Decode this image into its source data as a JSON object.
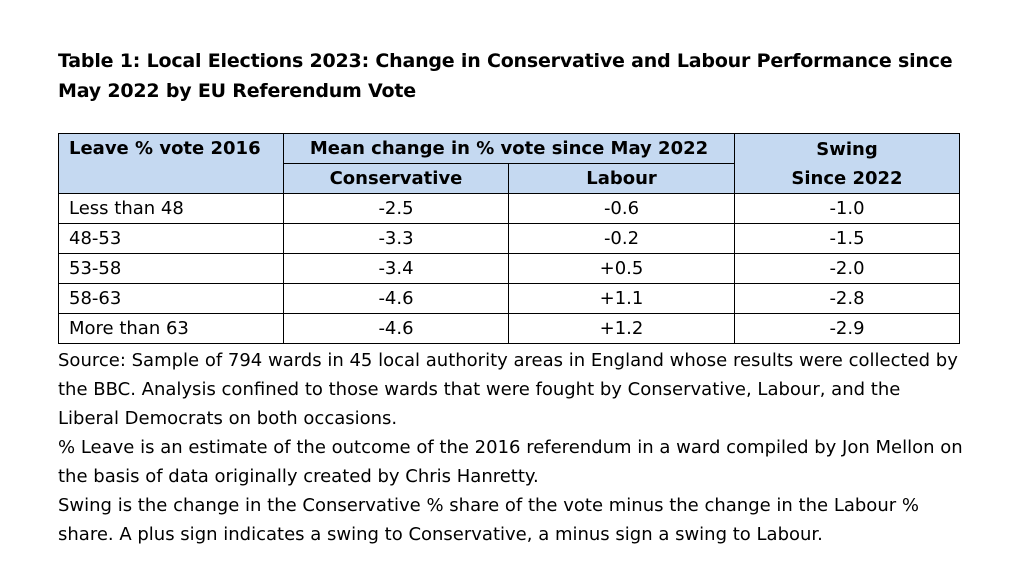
{
  "title": "Table 1: Local Elections 2023: Change in Conservative and Labour Performance since May 2022 by EU Referendum Vote",
  "table": {
    "headers": {
      "leave": "Leave % vote 2016",
      "mean_change": "Mean change in % vote since May 2022",
      "swing_line1": "Swing",
      "swing_line2": "Since 2022",
      "conservative": "Conservative",
      "labour": "Labour"
    },
    "rows": [
      {
        "leave": "Less than 48",
        "conservative": "-2.5",
        "labour": "-0.6",
        "swing": "-1.0"
      },
      {
        "leave": "48-53",
        "conservative": "-3.3",
        "labour": "-0.2",
        "swing": "-1.5"
      },
      {
        "leave": "53-58",
        "conservative": "-3.4",
        "labour": "+0.5",
        "swing": "-2.0"
      },
      {
        "leave": "58-63",
        "conservative": "-4.6",
        "labour": "+1.1",
        "swing": "-2.8"
      },
      {
        "leave": "More than 63",
        "conservative": "-4.6",
        "labour": "+1.2",
        "swing": "-2.9"
      }
    ]
  },
  "notes": [
    "Source: Sample of 794 wards in 45 local authority areas in England whose results were collected by the BBC. Analysis confined to those wards that were fought by Conservative, Labour, and the Liberal Democrats on both occasions.",
    "% Leave is an estimate of the outcome of the 2016 referendum in a ward compiled by Jon Mellon on the basis of data originally created by Chris Hanretty.",
    "Swing is the change in the Conservative % share of the vote minus the change in the Labour % share. A plus sign indicates a swing to Conservative, a minus sign a swing to Labour."
  ],
  "colors": {
    "header_bg": "#c5d9f1",
    "border": "#000000",
    "text": "#000000"
  }
}
